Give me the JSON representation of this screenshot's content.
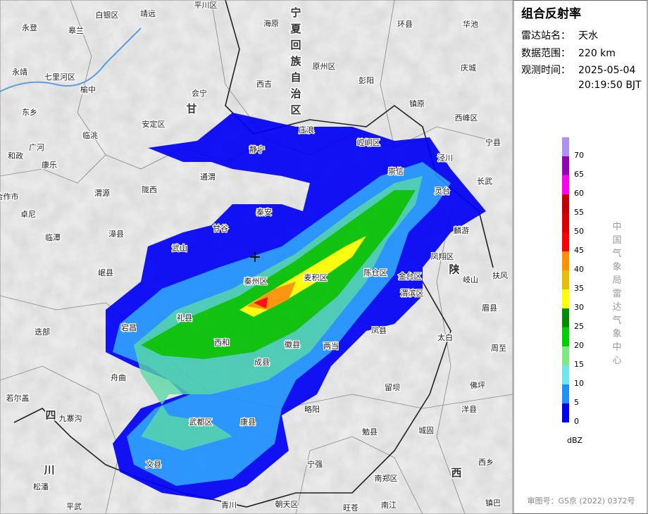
{
  "panel": {
    "title": "组合反射率",
    "station_label": "雷达站名：",
    "station": "天水",
    "range_label": "数据范围：",
    "range": "220 km",
    "time_label": "观测时间：",
    "date": "2025-05-04",
    "time": "20:19:50 BJT",
    "agency": "中国气象局雷达气象中心",
    "approval": "审图号：GS京 (2022) 0372号"
  },
  "legend": {
    "unit": "dBZ",
    "levels": [
      0,
      5,
      10,
      15,
      20,
      25,
      30,
      35,
      40,
      45,
      50,
      55,
      60,
      65,
      70
    ],
    "colors": [
      "#0000f6",
      "#1e90ff",
      "#6ee6f0",
      "#80e880",
      "#00d000",
      "#008c00",
      "#ffff00",
      "#e6be00",
      "#ff9000",
      "#ff0000",
      "#d80000",
      "#c00000",
      "#ff00f0",
      "#9600b4",
      "#ad90f0"
    ]
  },
  "map": {
    "labels": [
      "白银区",
      "靖远",
      "平川区",
      "永登",
      "皋兰",
      "海原",
      "宁夏回族自治区",
      "原州区",
      "西吉",
      "彭阳",
      "环县",
      "华池",
      "庆城",
      "镇原",
      "西峰区",
      "宁县",
      "泾川",
      "长武",
      "灵台",
      "崇信",
      "崆峒区",
      "庄浪",
      "静宁",
      "麟游",
      "凤翔区",
      "陕",
      "岐山",
      "扶风",
      "眉县",
      "太白",
      "周至",
      "佛坪",
      "洋县",
      "西乡",
      "西",
      "镇巴",
      "城固",
      "留坝",
      "勉县",
      "南郑区",
      "宁强",
      "南江",
      "旺苍",
      "朝天区",
      "青川",
      "平武",
      "松潘",
      "川",
      "文县",
      "武都区",
      "康县",
      "略阳",
      "徽县",
      "两当",
      "凤县",
      "成县",
      "西和",
      "礼县",
      "宕昌",
      "舟曲",
      "迭部",
      "若尔盖",
      "四",
      "九寨沟",
      "岷县",
      "漳县",
      "临潭",
      "卓尼",
      "合作市",
      "渭源",
      "陇西",
      "临洮",
      "康乐",
      "广河",
      "和政",
      "东乡",
      "永靖",
      "七里河区",
      "榆中",
      "安定区",
      "会宁",
      "甘",
      "通渭",
      "秦安",
      "甘谷",
      "武山",
      "秦州区",
      "麦积区",
      "陈仓区",
      "金台区",
      "渭滨区"
    ]
  }
}
